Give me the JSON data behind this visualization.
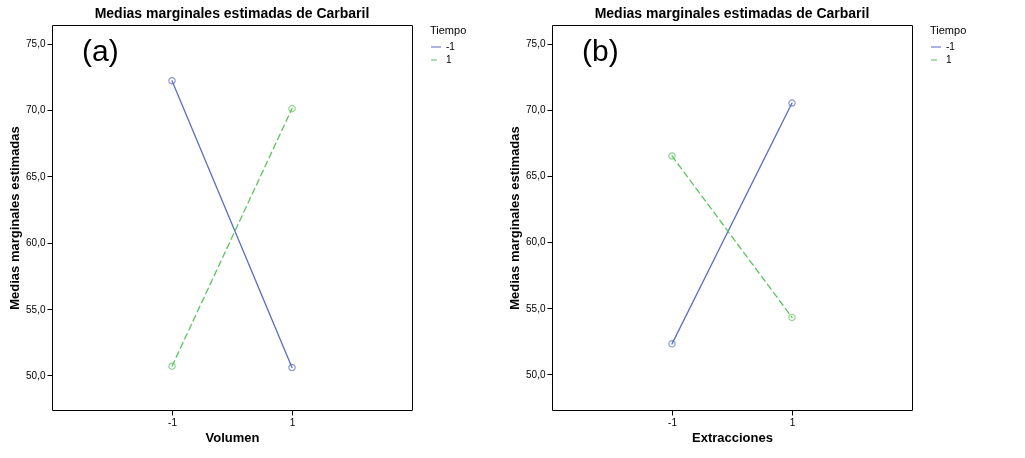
{
  "chart_data": [
    {
      "type": "line",
      "title": "Medias marginales estimadas de Carbaril",
      "xlabel": "Volumen",
      "ylabel": "Medias marginales estimadas",
      "legend_title": "Tiempo",
      "legend": "top right",
      "grid": false,
      "marker": "circle",
      "annotations": [
        "(a)"
      ],
      "categories": [
        "-1",
        "1"
      ],
      "ylim": [
        47.4,
        76.4
      ],
      "yticks": [
        {
          "value": 50,
          "label": "50,0"
        },
        {
          "value": 55,
          "label": "55,0"
        },
        {
          "value": 60,
          "label": "60,0"
        },
        {
          "value": 65,
          "label": "65,0"
        },
        {
          "value": 70,
          "label": "70,0"
        },
        {
          "value": 75,
          "label": "75,0"
        }
      ],
      "series": [
        {
          "name": "-1",
          "color": "#5a6fc0",
          "line_style": "solid",
          "values": [
            72.2,
            50.6
          ]
        },
        {
          "name": "1",
          "color": "#5cc45c",
          "line_style": "dashed",
          "values": [
            50.7,
            70.1
          ]
        }
      ]
    },
    {
      "type": "line",
      "title": "Medias marginales estimadas de Carbaril",
      "xlabel": "Extracciones",
      "ylabel": "Medias marginales estimadas",
      "legend_title": "Tiempo",
      "legend": "top right",
      "grid": false,
      "marker": "circle",
      "annotations": [
        "(b)"
      ],
      "categories": [
        "-1",
        "1"
      ],
      "ylim": [
        47.3,
        76.4
      ],
      "yticks": [
        {
          "value": 50,
          "label": "50,0"
        },
        {
          "value": 55,
          "label": "55,0"
        },
        {
          "value": 60,
          "label": "60,0"
        },
        {
          "value": 65,
          "label": "65,0"
        },
        {
          "value": 70,
          "label": "70,0"
        },
        {
          "value": 75,
          "label": "75,0"
        }
      ],
      "series": [
        {
          "name": "-1",
          "color": "#5a6fc0",
          "line_style": "solid",
          "values": [
            52.3,
            70.5
          ]
        },
        {
          "name": "1",
          "color": "#5cc45c",
          "line_style": "dashed",
          "values": [
            66.5,
            54.3
          ]
        }
      ]
    }
  ]
}
